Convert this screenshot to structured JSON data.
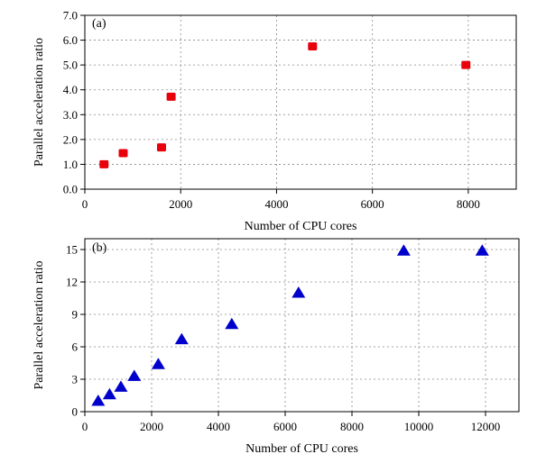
{
  "chart_data": [
    {
      "type": "scatter",
      "panel_label": "(a)",
      "xlabel": "Number of CPU cores",
      "ylabel": "Parallel acceleration ratio",
      "xlim": [
        0,
        9000
      ],
      "ylim": [
        0,
        7
      ],
      "xticks": [
        0,
        2000,
        4000,
        6000,
        8000
      ],
      "yticks": [
        0,
        1,
        2,
        3,
        4,
        5,
        6,
        7
      ],
      "xtick_labels": [
        "0",
        "2000",
        "4000",
        "6000",
        "8000"
      ],
      "ytick_labels": [
        "0.0",
        "1.0",
        "2.0",
        "3.0",
        "4.0",
        "5.0",
        "6.0",
        "7.0"
      ],
      "grid": true,
      "series": [
        {
          "marker": "square",
          "color": "#e8000b",
          "x": [
            400,
            800,
            1600,
            1800,
            4750,
            7950
          ],
          "y": [
            1.0,
            1.45,
            1.68,
            3.72,
            5.75,
            5.0
          ]
        }
      ]
    },
    {
      "type": "scatter",
      "panel_label": "(b)",
      "xlabel": "Number of CPU cores",
      "ylabel": "Parallel acceleration ratio",
      "xlim": [
        0,
        13000
      ],
      "ylim": [
        0,
        16
      ],
      "xticks": [
        0,
        2000,
        4000,
        6000,
        8000,
        10000,
        12000
      ],
      "yticks": [
        0,
        3,
        6,
        9,
        12,
        15
      ],
      "xtick_labels": [
        "0",
        "2000",
        "4000",
        "6000",
        "8000",
        "10000",
        "12000"
      ],
      "ytick_labels": [
        "0",
        "3",
        "6",
        "9",
        "12",
        "15"
      ],
      "grid": true,
      "series": [
        {
          "marker": "triangle",
          "color": "#0000cc",
          "x": [
            400,
            740,
            1080,
            1480,
            2200,
            2900,
            4400,
            6400,
            9550,
            11900
          ],
          "y": [
            1.0,
            1.6,
            2.3,
            3.3,
            4.4,
            6.7,
            8.1,
            11.0,
            14.9,
            14.9
          ]
        }
      ]
    }
  ]
}
